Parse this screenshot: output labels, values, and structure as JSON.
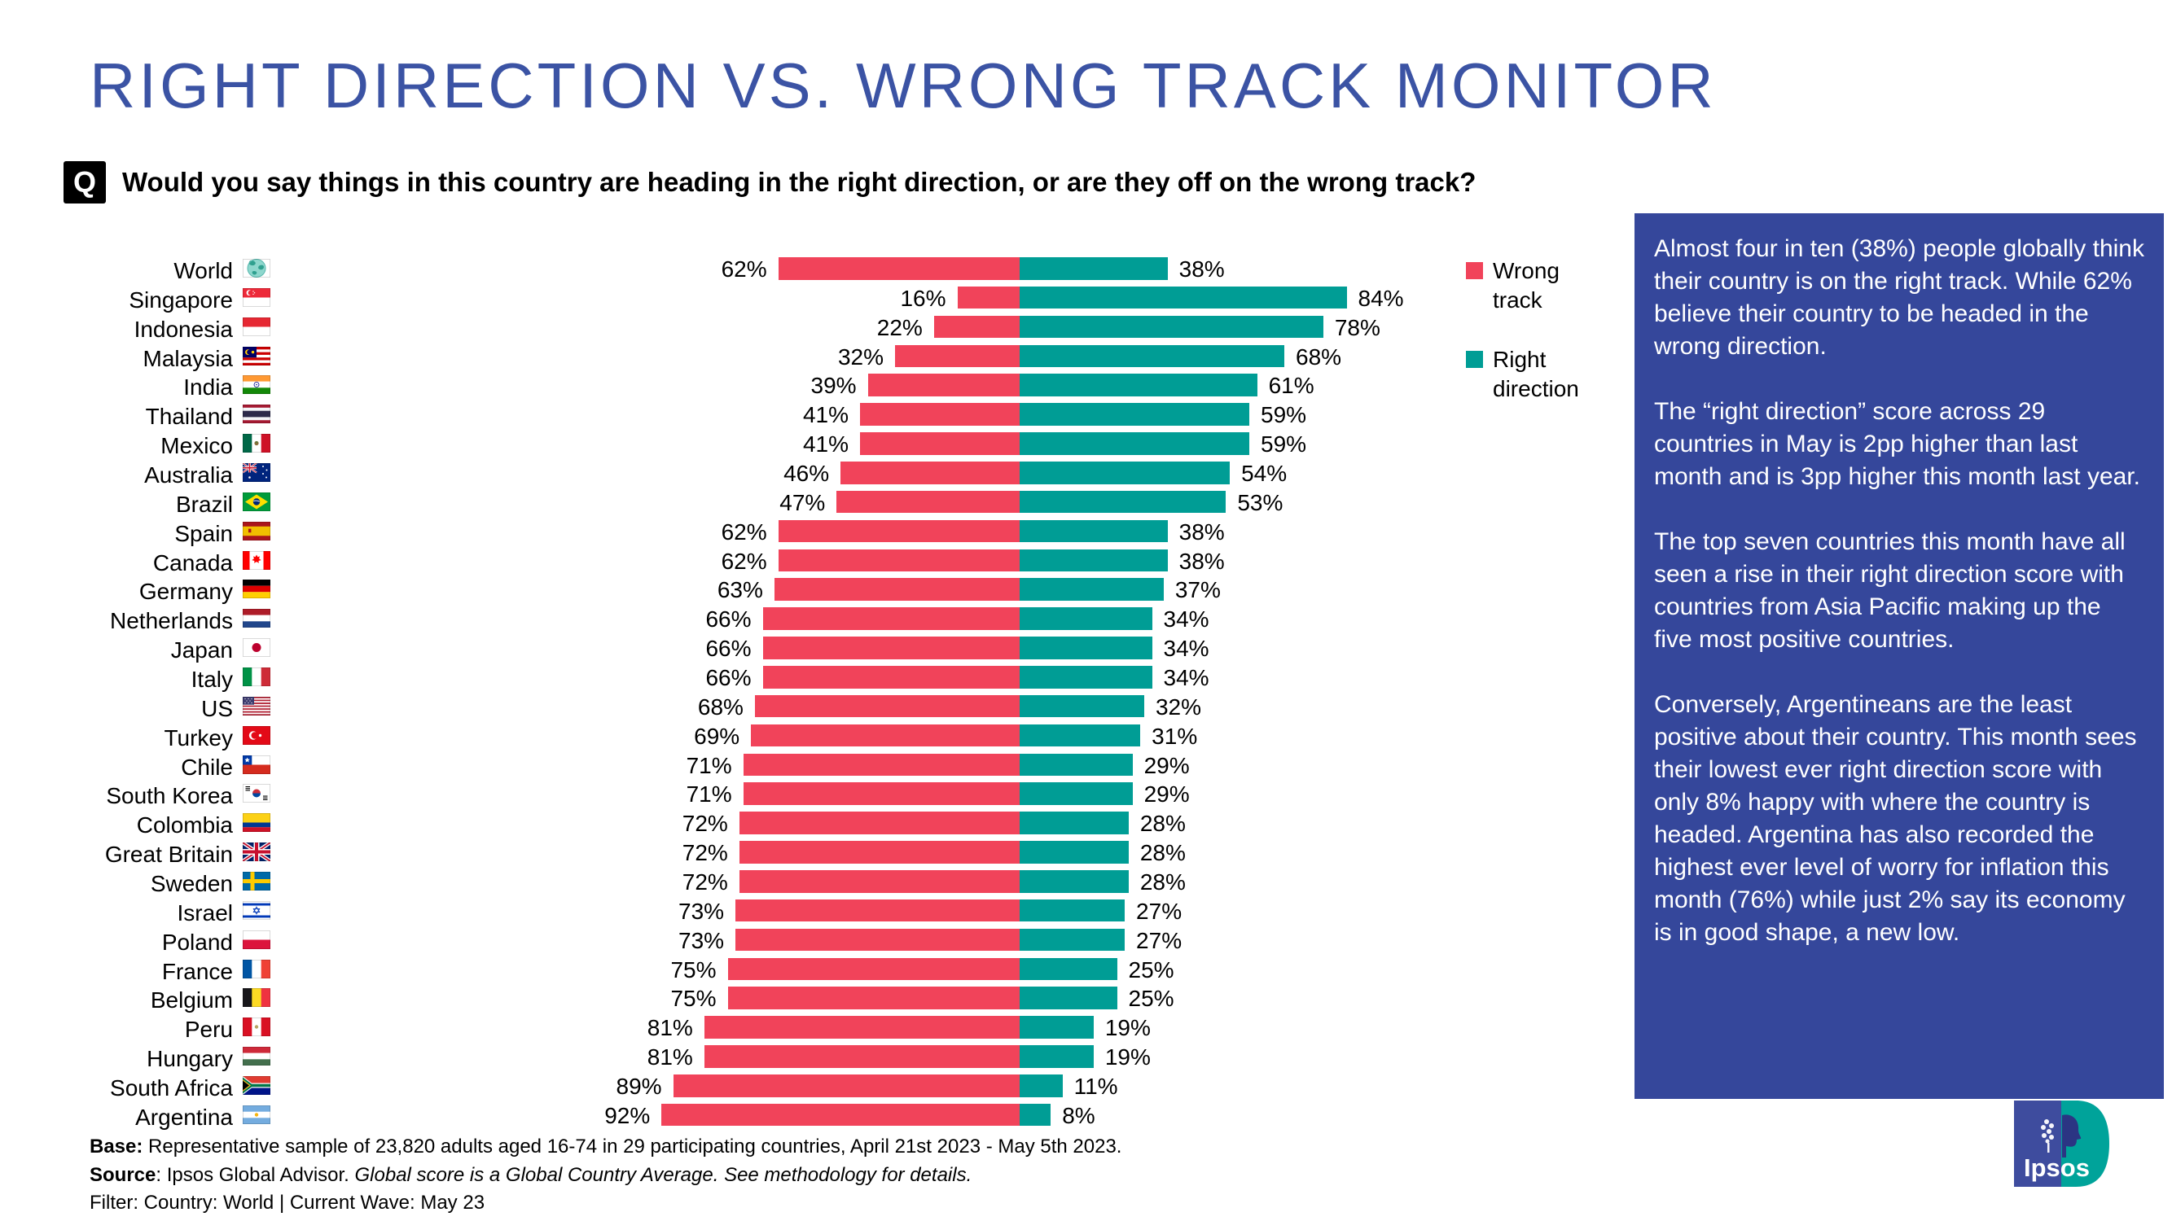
{
  "title": "RIGHT DIRECTION VS. WRONG TRACK MONITOR",
  "question": {
    "badge": "Q",
    "text": "Would you say things in this country are heading in the right direction, or are they off on the wrong track?"
  },
  "colors": {
    "title": "#3B53A4",
    "question_badge_bg": "#000000",
    "panel_bg": "#35479B",
    "wrong": "#F1435A",
    "right": "#009D95"
  },
  "chart_data": {
    "type": "bar",
    "subtype": "diverging horizontal stacked bars, pairs sum to 100%",
    "title": "RIGHT DIRECTION VS. WRONG TRACK MONITOR",
    "value_suffix": "%",
    "axis": "none (value labels shown at both bar ends)",
    "legend_position": "right",
    "categories": [
      "World",
      "Singapore",
      "Indonesia",
      "Malaysia",
      "India",
      "Thailand",
      "Mexico",
      "Australia",
      "Brazil",
      "Spain",
      "Canada",
      "Germany",
      "Netherlands",
      "Japan",
      "Italy",
      "US",
      "Turkey",
      "Chile",
      "South Korea",
      "Colombia",
      "Great Britain",
      "Sweden",
      "Israel",
      "Poland",
      "France",
      "Belgium",
      "Peru",
      "Hungary",
      "South Africa",
      "Argentina"
    ],
    "series": [
      {
        "name": "Wrong track",
        "color": "#F1435A",
        "values": [
          62,
          16,
          22,
          32,
          39,
          41,
          41,
          46,
          47,
          62,
          62,
          63,
          66,
          66,
          66,
          68,
          69,
          71,
          71,
          72,
          72,
          72,
          73,
          73,
          75,
          75,
          81,
          81,
          89,
          92
        ]
      },
      {
        "name": "Right direction",
        "color": "#009D95",
        "values": [
          38,
          84,
          78,
          68,
          61,
          59,
          59,
          54,
          53,
          38,
          38,
          37,
          34,
          34,
          34,
          32,
          31,
          29,
          29,
          28,
          28,
          28,
          27,
          27,
          25,
          25,
          19,
          19,
          11,
          8
        ]
      }
    ]
  },
  "flags": [
    "world",
    "sg",
    "id",
    "my",
    "in",
    "th",
    "mx",
    "au",
    "br",
    "es",
    "ca",
    "de",
    "nl",
    "jp",
    "it",
    "us",
    "tr",
    "cl",
    "kr",
    "co",
    "gb",
    "se",
    "il",
    "pl",
    "fr",
    "be",
    "pe",
    "hu",
    "za",
    "ar"
  ],
  "sidebar": {
    "paragraphs": [
      "Almost four in ten (38%) people globally think their country is on the right track. While 62% believe their country to be headed in the wrong direction.",
      "The “right direction” score across 29 countries in May is 2pp higher than last month and is 3pp higher this month last year.",
      "The top seven countries this month have all seen a rise in their right direction score with countries from Asia Pacific making up the five most positive countries.",
      "Conversely, Argentineans are the least positive about their country. This month sees their lowest ever right direction score with only 8% happy with where the country is headed. Argentina has also recorded the highest ever level of worry for inflation this month (76%) while just 2% say its economy is in good shape, a new low."
    ]
  },
  "footer": {
    "base_label": "Base:",
    "base_text": " Representative sample of 23,820 adults aged 16-74 in 29 participating countries, April 21st 2023 - May 5th 2023.",
    "source_label": "Source",
    "source_plain": ": Ipsos Global Advisor. ",
    "source_italic": "Global score is a Global Country Average. See methodology for details.",
    "filter": "Filter: Country: World | Current Wave: May 23"
  },
  "logo_text": "Ipsos"
}
